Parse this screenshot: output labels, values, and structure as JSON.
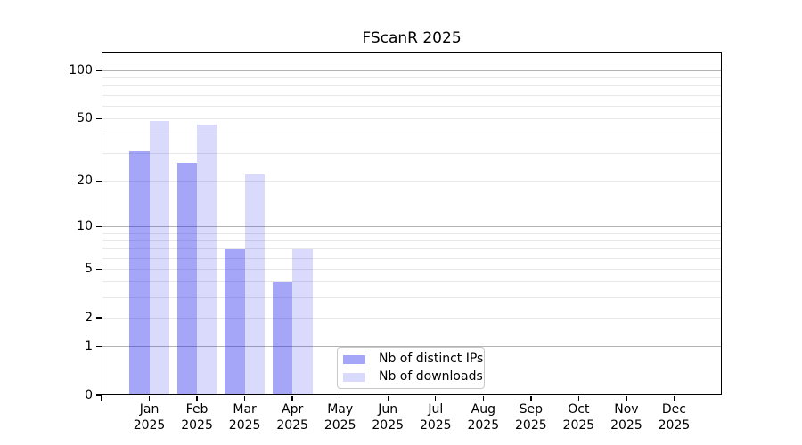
{
  "figure": {
    "title": "FScanR 2025"
  },
  "chart_data": {
    "type": "bar",
    "title": "FScanR 2025",
    "categories": [
      "Jan 2025",
      "Feb 2025",
      "Mar 2025",
      "Apr 2025",
      "May 2025",
      "Jun 2025",
      "Jul 2025",
      "Aug 2025",
      "Sep 2025",
      "Oct 2025",
      "Nov 2025",
      "Dec 2025"
    ],
    "series": [
      {
        "name": "Nb of distinct IPs",
        "values": [
          31,
          26,
          7,
          4,
          0,
          0,
          0,
          0,
          0,
          0,
          0,
          0
        ]
      },
      {
        "name": "Nb of downloads",
        "values": [
          48,
          46,
          22,
          7,
          0,
          0,
          0,
          0,
          0,
          0,
          0,
          0
        ]
      }
    ],
    "xlabel": "",
    "ylabel": "",
    "yscale": "log1p",
    "ylim": [
      0,
      130
    ],
    "yticks": [
      0,
      1,
      2,
      5,
      10,
      20,
      50,
      100
    ],
    "grid": "horizontal",
    "grid_major_at": [
      1,
      10,
      100
    ],
    "grid_minor_at": [
      2,
      3,
      4,
      5,
      6,
      7,
      8,
      9,
      20,
      30,
      40,
      50,
      60,
      70,
      80,
      90
    ],
    "legend_position": "lower center inside",
    "colors": {
      "bar_ips": "#a6a6f9",
      "bar_ips_rgba": "rgba(20,20,240,0.38)",
      "bar_downloads": "#dcdcfc",
      "bar_downloads_rgba": "rgba(20,20,240,0.155)",
      "grid_major": "#b3b3b3",
      "grid_minor": "#e8e8e8",
      "axis": "#000000",
      "background": "#ffffff"
    }
  },
  "legend": {
    "items": [
      {
        "label": "Nb of distinct IPs",
        "swatch": "bar_ips"
      },
      {
        "label": "Nb of downloads",
        "swatch": "bar_downloads"
      }
    ]
  }
}
